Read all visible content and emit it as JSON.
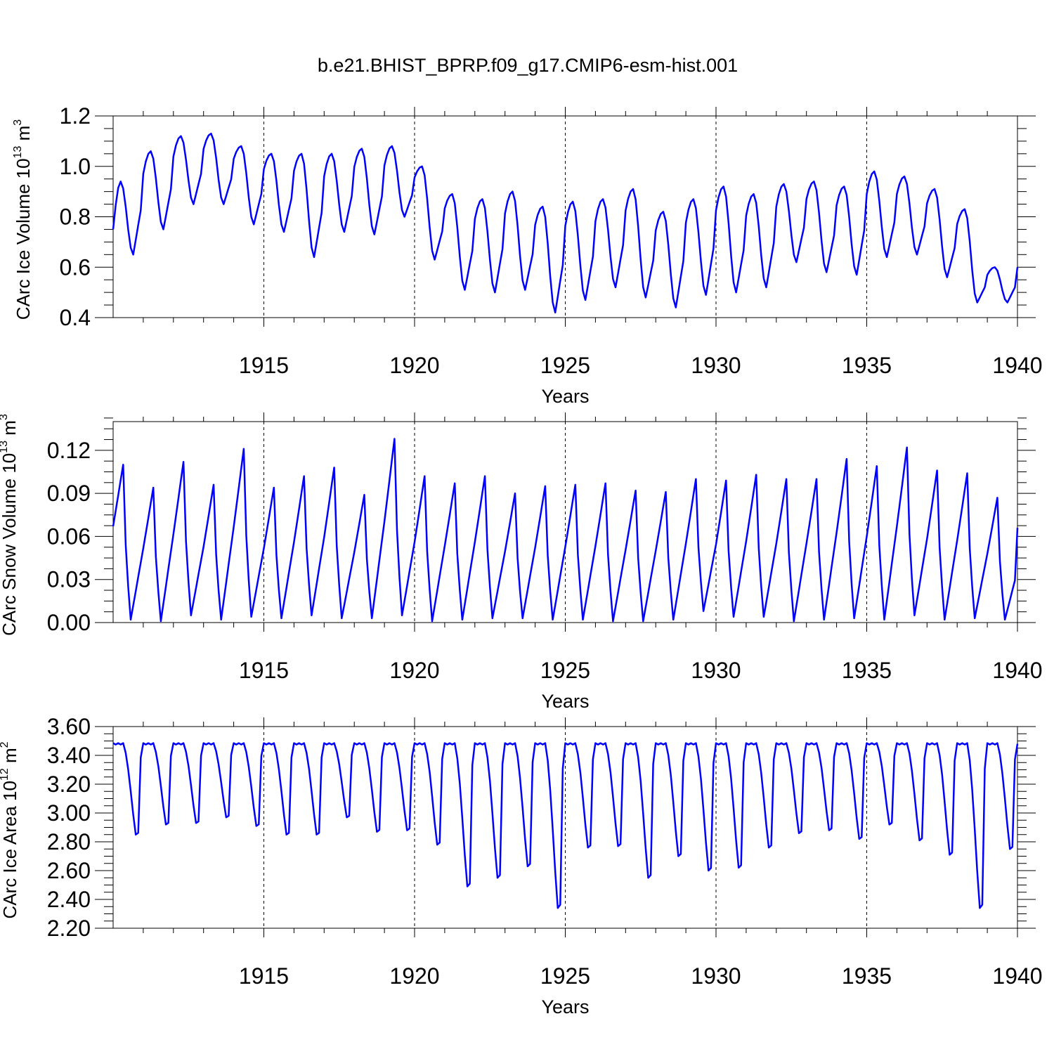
{
  "figure": {
    "title": "b.e21.BHIST_BPRP.f09_g17.CMIP6-esm-hist.001",
    "colors": {
      "series": "#0000ff",
      "axis": "#000000",
      "grid": "#000000",
      "background": "#ffffff"
    }
  },
  "chart_data": [
    {
      "type": "line",
      "name": "ice-volume",
      "ylabel_main": "CArc Ice Volume 10",
      "ylabel_exp": "13",
      "ylabel_unit": " m",
      "ylabel_unit_exp": "3",
      "xlabel": "Years",
      "xlim": [
        1910,
        1940
      ],
      "ylim": [
        0.4,
        1.2
      ],
      "xticks": [
        1915,
        1920,
        1925,
        1930,
        1935,
        1940
      ],
      "xtick_labels": [
        "1915",
        "1920",
        "1925",
        "1930",
        "1935",
        "1940"
      ],
      "yticks": [
        0.4,
        0.6,
        0.8,
        1.0,
        1.2
      ],
      "ytick_labels": [
        "0.4",
        "0.6",
        "0.8",
        "1.0",
        "1.2"
      ],
      "grid": "dashed-vertical",
      "series": [
        {
          "name": "CArc Ice Volume",
          "peaks": [
            0.94,
            1.06,
            1.12,
            1.13,
            1.08,
            1.05,
            1.05,
            1.05,
            1.07,
            1.08,
            1.0,
            0.89,
            0.87,
            0.9,
            0.84,
            0.86,
            0.87,
            0.91,
            0.82,
            0.87,
            0.92,
            0.89,
            0.93,
            0.94,
            0.92,
            0.98,
            0.96,
            0.91,
            0.83,
            0.6
          ],
          "troughs": [
            0.65,
            0.75,
            0.85,
            0.85,
            0.77,
            0.74,
            0.64,
            0.74,
            0.73,
            0.8,
            0.63,
            0.51,
            0.5,
            0.51,
            0.42,
            0.47,
            0.52,
            0.48,
            0.44,
            0.49,
            0.5,
            0.52,
            0.62,
            0.58,
            0.57,
            0.64,
            0.65,
            0.56,
            0.46,
            0.46
          ],
          "start": 0.75,
          "peak_month": 3,
          "trough_month": 8
        }
      ]
    },
    {
      "type": "line",
      "name": "snow-volume",
      "ylabel_main": "CArc Snow Volume 10",
      "ylabel_exp": "13",
      "ylabel_unit": " m",
      "ylabel_unit_exp": "3",
      "xlabel": "Years",
      "xlim": [
        1910,
        1940
      ],
      "ylim": [
        0.0,
        0.14
      ],
      "xticks": [
        1915,
        1920,
        1925,
        1930,
        1935,
        1940
      ],
      "xtick_labels": [
        "1915",
        "1920",
        "1925",
        "1930",
        "1935",
        "1940"
      ],
      "yticks": [
        0.0,
        0.03,
        0.06,
        0.09,
        0.12
      ],
      "ytick_labels": [
        "0.00",
        "0.03",
        "0.06",
        "0.09",
        "0.12"
      ],
      "grid": "dashed-vertical",
      "series": [
        {
          "name": "CArc Snow Volume",
          "peaks": [
            0.11,
            0.094,
            0.112,
            0.096,
            0.121,
            0.094,
            0.102,
            0.108,
            0.089,
            0.128,
            0.102,
            0.097,
            0.102,
            0.09,
            0.095,
            0.096,
            0.097,
            0.092,
            0.091,
            0.1,
            0.099,
            0.103,
            0.1,
            0.1,
            0.114,
            0.109,
            0.122,
            0.106,
            0.104,
            0.087
          ],
          "troughs": [
            0.002,
            0.001,
            0.005,
            0.002,
            0.004,
            0.003,
            0.005,
            0.003,
            0.003,
            0.005,
            0.001,
            0.002,
            0.003,
            0.003,
            0.002,
            0.002,
            0.001,
            0.001,
            0.002,
            0.008,
            0.004,
            0.004,
            0.001,
            0.002,
            0.003,
            0.002,
            0.005,
            0.002,
            0.003,
            0.002
          ],
          "start": 0.067,
          "end": 0.066,
          "peak_month": 4,
          "trough_month": 7
        }
      ]
    },
    {
      "type": "line",
      "name": "ice-area",
      "ylabel_main": "CArc Ice Area 10",
      "ylabel_exp": "12",
      "ylabel_unit": " m",
      "ylabel_unit_exp": "2",
      "xlabel": "Years",
      "xlim": [
        1910,
        1940
      ],
      "ylim": [
        2.2,
        3.6
      ],
      "xticks": [
        1915,
        1920,
        1925,
        1930,
        1935,
        1940
      ],
      "xtick_labels": [
        "1915",
        "1920",
        "1925",
        "1930",
        "1935",
        "1940"
      ],
      "yticks": [
        2.2,
        2.4,
        2.6,
        2.8,
        3.0,
        3.2,
        3.4,
        3.6
      ],
      "ytick_labels": [
        "2.20",
        "2.40",
        "2.60",
        "2.80",
        "3.00",
        "3.20",
        "3.40",
        "3.60"
      ],
      "grid": "dashed-vertical",
      "series": [
        {
          "name": "CArc Ice Area",
          "plateau": 3.48,
          "minima": [
            2.85,
            2.92,
            2.93,
            2.97,
            2.91,
            2.85,
            2.85,
            2.97,
            2.87,
            2.88,
            2.78,
            2.49,
            2.55,
            2.63,
            2.34,
            2.76,
            2.77,
            2.55,
            2.7,
            2.6,
            2.62,
            2.76,
            2.86,
            2.88,
            2.82,
            2.92,
            2.81,
            2.71,
            2.34,
            2.75
          ],
          "min_month": 9
        }
      ]
    }
  ]
}
